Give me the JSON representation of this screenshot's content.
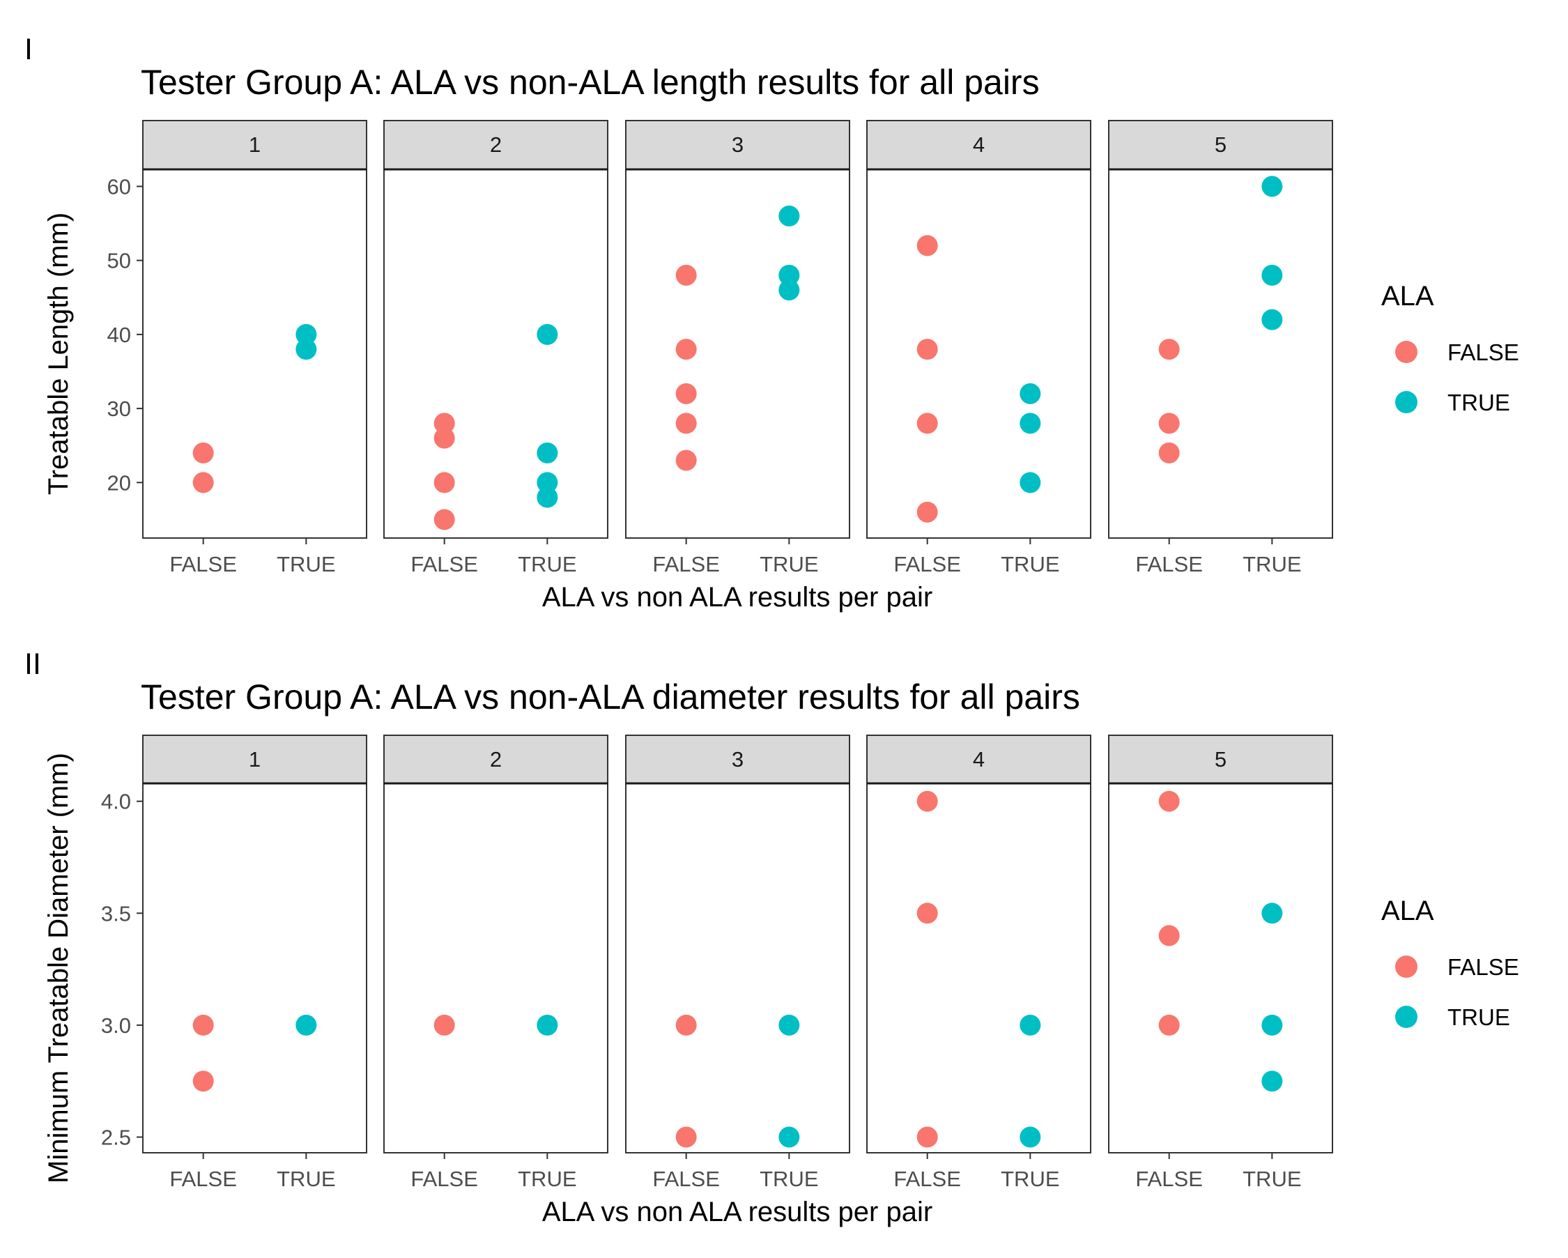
{
  "chart_data": [
    {
      "type": "scatter",
      "panel_tag": "I",
      "title": "Tester Group A: ALA vs non-ALA length results for all pairs",
      "xlabel": "ALA vs non ALA results per pair",
      "ylabel": "Treatable Length (mm)",
      "ylim": [
        12.5,
        62.3
      ],
      "yticks": [
        "20",
        "30",
        "40",
        "50",
        "60"
      ],
      "ytick_values": [
        20,
        30,
        40,
        50,
        60
      ],
      "categories": [
        "FALSE",
        "TRUE"
      ],
      "facets": [
        {
          "label": "1",
          "series": [
            {
              "name": "FALSE",
              "values": [
                24,
                20
              ]
            },
            {
              "name": "TRUE",
              "values": [
                40,
                38
              ]
            }
          ]
        },
        {
          "label": "2",
          "series": [
            {
              "name": "FALSE",
              "values": [
                28,
                26,
                20,
                15
              ]
            },
            {
              "name": "TRUE",
              "values": [
                40,
                24,
                20,
                18
              ]
            }
          ]
        },
        {
          "label": "3",
          "series": [
            {
              "name": "FALSE",
              "values": [
                48,
                38,
                32,
                28,
                23
              ]
            },
            {
              "name": "TRUE",
              "values": [
                56,
                48,
                46
              ]
            }
          ]
        },
        {
          "label": "4",
          "series": [
            {
              "name": "FALSE",
              "values": [
                52,
                38,
                28,
                16
              ]
            },
            {
              "name": "TRUE",
              "values": [
                32,
                28,
                20
              ]
            }
          ]
        },
        {
          "label": "5",
          "series": [
            {
              "name": "FALSE",
              "values": [
                38,
                28,
                24
              ]
            },
            {
              "name": "TRUE",
              "values": [
                60,
                48,
                42
              ]
            }
          ]
        }
      ],
      "legend": {
        "title": "ALA",
        "entries": [
          "FALSE",
          "TRUE"
        ],
        "placement": "right"
      },
      "grid": false
    },
    {
      "type": "scatter",
      "panel_tag": "II",
      "title": "Tester Group A: ALA vs non-ALA diameter results for all pairs",
      "xlabel": "ALA vs non ALA results per pair",
      "ylabel": "Minimum Treatable Diameter (mm)",
      "ylim": [
        2.43,
        4.08
      ],
      "yticks": [
        "2.5",
        "3.0",
        "3.5",
        "4.0"
      ],
      "ytick_values": [
        2.5,
        3.0,
        3.5,
        4.0
      ],
      "categories": [
        "FALSE",
        "TRUE"
      ],
      "facets": [
        {
          "label": "1",
          "series": [
            {
              "name": "FALSE",
              "values": [
                3.0,
                2.75
              ]
            },
            {
              "name": "TRUE",
              "values": [
                3.0
              ]
            }
          ]
        },
        {
          "label": "2",
          "series": [
            {
              "name": "FALSE",
              "values": [
                3.0
              ]
            },
            {
              "name": "TRUE",
              "values": [
                3.0
              ]
            }
          ]
        },
        {
          "label": "3",
          "series": [
            {
              "name": "FALSE",
              "values": [
                3.0,
                2.5
              ]
            },
            {
              "name": "TRUE",
              "values": [
                3.0,
                2.5
              ]
            }
          ]
        },
        {
          "label": "4",
          "series": [
            {
              "name": "FALSE",
              "values": [
                4.0,
                3.5,
                2.5
              ]
            },
            {
              "name": "TRUE",
              "values": [
                3.0,
                2.5
              ]
            }
          ]
        },
        {
          "label": "5",
          "series": [
            {
              "name": "FALSE",
              "values": [
                4.0,
                3.4,
                3.0
              ]
            },
            {
              "name": "TRUE",
              "values": [
                3.5,
                3.0,
                2.75
              ]
            }
          ]
        }
      ],
      "legend": {
        "title": "ALA",
        "entries": [
          "FALSE",
          "TRUE"
        ],
        "placement": "right"
      },
      "grid": false
    }
  ],
  "colors": {
    "FALSE": "#F8766D",
    "TRUE": "#00BFC4",
    "strip": "#D9D9D9"
  }
}
